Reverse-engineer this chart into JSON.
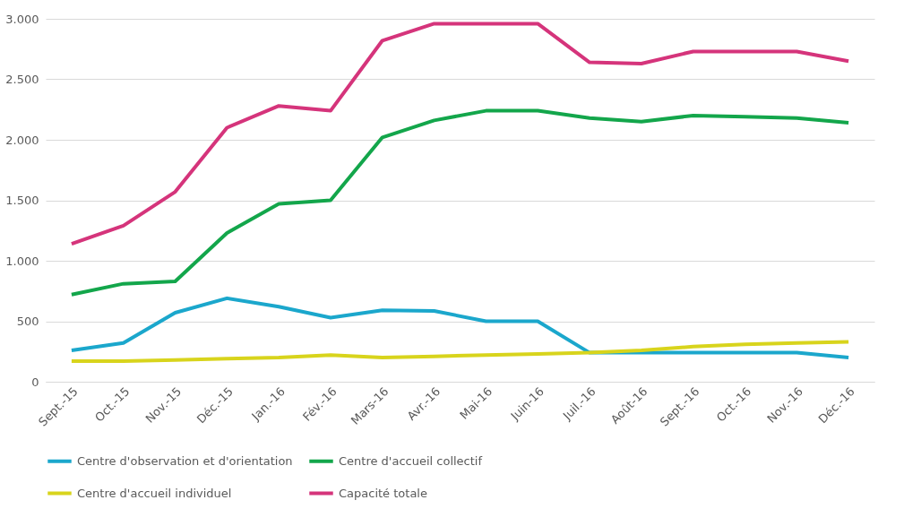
{
  "chart_data": {
    "type": "line",
    "categories": [
      "Sept.-15",
      "Oct.-15",
      "Nov.-15",
      "Déc.-15",
      "Jan.-16",
      "Fév.-16",
      "Mars-16",
      "Avr.-16",
      "Mai-16",
      "Juin-16",
      "Juil.-16",
      "Août-16",
      "Sept.-16",
      "Oct.-16",
      "Nov.-16",
      "Déc.-16"
    ],
    "series": [
      {
        "name": "Centre d'observation et d'orientation",
        "color": "#1ba7cc",
        "values": [
          260,
          320,
          570,
          690,
          620,
          530,
          590,
          585,
          500,
          500,
          240,
          240,
          240,
          240,
          240,
          200
        ]
      },
      {
        "name": "Centre d'accueil collectif",
        "color": "#13a64b",
        "values": [
          720,
          810,
          830,
          1230,
          1470,
          1500,
          2020,
          2160,
          2240,
          2240,
          2180,
          2150,
          2200,
          2190,
          2180,
          2140
        ]
      },
      {
        "name": "Centre d'accueil individuel",
        "color": "#d8d41c",
        "values": [
          170,
          170,
          180,
          190,
          200,
          220,
          200,
          210,
          220,
          230,
          240,
          260,
          290,
          310,
          320,
          330
        ]
      },
      {
        "name": "Capacité totale",
        "color": "#d5347b",
        "values": [
          1140,
          1290,
          1570,
          2100,
          2280,
          2240,
          2820,
          2960,
          2960,
          2960,
          2640,
          2630,
          2730,
          2730,
          2730,
          2650
        ]
      }
    ],
    "ylim": [
      0,
      3000
    ],
    "yticks": [
      0,
      {
        "value": 500,
        "label": "500"
      },
      {
        "value": 1000,
        "label": "1.000"
      },
      {
        "value": 1500,
        "label": "1.500"
      },
      {
        "value": 2000,
        "label": "2.000"
      },
      {
        "value": 2500,
        "label": "2.500"
      },
      {
        "value": 3000,
        "label": "3.000"
      }
    ],
    "grid": "y",
    "legend": "bottom",
    "marker": "none",
    "line_style": "solid"
  }
}
